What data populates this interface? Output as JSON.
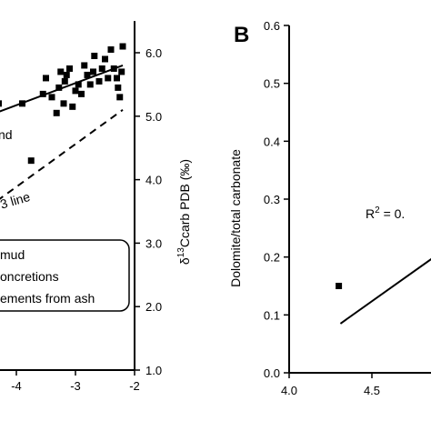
{
  "chart_data": [
    {
      "type": "scatter",
      "panel": "A",
      "x_ticks": [
        "-4",
        "-3",
        "-2"
      ],
      "xlim": [
        -4.5,
        -2
      ],
      "y_ticks": [
        "1.0",
        "2.0",
        "3.0",
        "4.0",
        "5.0",
        "6.0"
      ],
      "ylim": [
        1.0,
        6.5
      ],
      "y_axis_side": "right",
      "ylabel_parts": {
        "delta": "δ",
        "superscript": "13",
        "base": "Ccarb PDB (‰)"
      },
      "xlabel": "",
      "series": [
        {
          "marker": "square",
          "points": [
            [
              -4.45,
              5.35
            ],
            [
              -4.3,
              5.2
            ],
            [
              -3.9,
              5.2
            ],
            [
              -3.55,
              5.35
            ],
            [
              -3.5,
              5.6
            ],
            [
              -3.4,
              5.3
            ],
            [
              -3.32,
              5.05
            ],
            [
              -3.28,
              5.45
            ],
            [
              -3.25,
              5.7
            ],
            [
              -3.2,
              5.2
            ],
            [
              -3.18,
              5.55
            ],
            [
              -3.15,
              5.65
            ],
            [
              -3.1,
              5.75
            ],
            [
              -3.05,
              5.15
            ],
            [
              -3.0,
              5.4
            ],
            [
              -2.95,
              5.5
            ],
            [
              -2.9,
              5.35
            ],
            [
              -2.85,
              5.8
            ],
            [
              -2.8,
              5.65
            ],
            [
              -2.75,
              5.5
            ],
            [
              -2.7,
              5.7
            ],
            [
              -2.68,
              5.95
            ],
            [
              -2.6,
              5.55
            ],
            [
              -2.55,
              5.75
            ],
            [
              -2.5,
              5.9
            ],
            [
              -2.45,
              5.6
            ],
            [
              -2.4,
              6.05
            ],
            [
              -2.35,
              5.75
            ],
            [
              -2.3,
              5.6
            ],
            [
              -2.28,
              5.45
            ],
            [
              -2.25,
              5.3
            ],
            [
              -2.22,
              5.7
            ],
            [
              -2.2,
              6.1
            ],
            [
              -3.75,
              4.3
            ]
          ]
        }
      ],
      "lines": [
        {
          "style": "solid",
          "x": [
            -4.5,
            -2.2
          ],
          "y": [
            5.0,
            5.8
          ]
        },
        {
          "style": "dashed",
          "x": [
            -4.5,
            -2.2
          ],
          "y": [
            3.55,
            5.1
          ]
        }
      ],
      "annotations": [
        "nd",
        "+3 line"
      ],
      "legend": {
        "position": "bottom-left",
        "entries": [
          "mud",
          "oncretions",
          "ements from ash"
        ]
      }
    },
    {
      "type": "scatter",
      "panel": "B",
      "title": "B",
      "x_ticks": [
        "4.0",
        "4.5"
      ],
      "xlim": [
        4.0,
        5.0
      ],
      "y_ticks": [
        "0.0",
        "0.1",
        "0.2",
        "0.3",
        "0.4",
        "0.5",
        "0.6"
      ],
      "ylim": [
        0.0,
        0.6
      ],
      "ylabel": "Dolomite/total carbonate",
      "xlabel": "",
      "series": [
        {
          "marker": "square",
          "points": [
            [
              4.3,
              0.15
            ]
          ]
        }
      ],
      "lines": [
        {
          "style": "solid",
          "x": [
            4.31,
            4.95
          ],
          "y": [
            0.085,
            0.215
          ]
        }
      ],
      "annotation": {
        "base": "R",
        "superscript": "2",
        "rest": " = 0."
      }
    }
  ]
}
